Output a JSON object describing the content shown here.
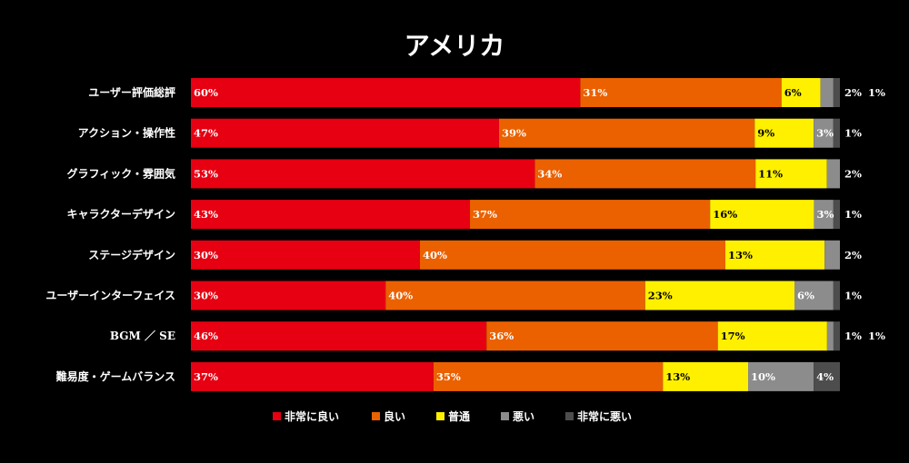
{
  "chart_data": {
    "type": "bar",
    "orientation": "horizontal-stacked-100",
    "title": "アメリカ",
    "categories": [
      "ユーザー評価総評",
      "アクション・操作性",
      "グラフィック・雰囲気",
      "キャラクターデザイン",
      "ステージデザイン",
      "ユーザーインターフェイス",
      "BGM ／ SE",
      "難易度・ゲームバランス"
    ],
    "series": [
      {
        "name": "非常に良い",
        "color": "#e60012",
        "values": [
          60,
          47,
          53,
          43,
          30,
          30,
          46,
          37
        ],
        "labels": [
          "60%",
          "47%",
          "53%",
          "43%",
          "30%",
          "30%",
          "46%",
          "37%"
        ]
      },
      {
        "name": "良い",
        "color": "#eb6100",
        "values": [
          31,
          39,
          34,
          37,
          40,
          40,
          36,
          35
        ],
        "labels": [
          "31%",
          "39%",
          "34%",
          "37%",
          "40%",
          "40%",
          "36%",
          "35%"
        ]
      },
      {
        "name": "普通",
        "color": "#fff000",
        "values": [
          6,
          9,
          11,
          16,
          13,
          23,
          17,
          13
        ],
        "labels": [
          "6%",
          "9%",
          "11%",
          "16%",
          "13%",
          "23%",
          "17%",
          "13%"
        ]
      },
      {
        "name": "悪い",
        "color": "#8c8c8c",
        "values": [
          2,
          3,
          2,
          3,
          2,
          6,
          1,
          10
        ],
        "labels": [
          "2%",
          "3%",
          "2%",
          "3%",
          "2%",
          "6%",
          "1%",
          "10%"
        ]
      },
      {
        "name": "非常に悪い",
        "color": "#4d4d4d",
        "values": [
          1,
          1,
          0,
          1,
          0,
          1,
          1,
          4
        ],
        "labels": [
          "1%",
          "1%",
          "",
          "1%",
          "",
          "1%",
          "1%",
          "4%"
        ]
      }
    ],
    "xlim": [
      0,
      100
    ],
    "legend_position": "bottom"
  }
}
